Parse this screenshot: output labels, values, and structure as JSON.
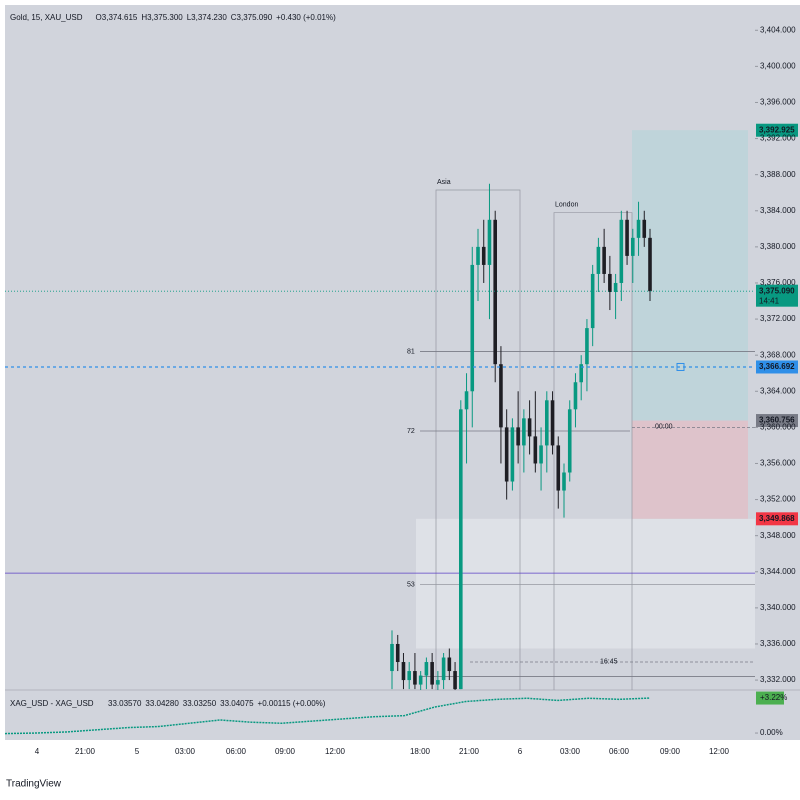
{
  "chart_data": {
    "type": "candlestick",
    "title": "Gold, 15, XAU_USD",
    "ohlc_legend": [
      "O3,374.615",
      "H3,375.300",
      "L3,374.230",
      "C3,375.090",
      "+0.430 (+0.01%)"
    ],
    "ylim": [
      3330.9,
      3406.8
    ],
    "yticks": [
      {
        "value": 3404,
        "label": "3,404.000"
      },
      {
        "value": 3400,
        "label": "3,400.000"
      },
      {
        "value": 3396,
        "label": "3,396.000"
      },
      {
        "value": 3392,
        "label": "3,392.000"
      },
      {
        "value": 3388,
        "label": "3,388.000"
      },
      {
        "value": 3384,
        "label": "3,384.000"
      },
      {
        "value": 3380,
        "label": "3,380.000"
      },
      {
        "value": 3376,
        "label": "3,376.000"
      },
      {
        "value": 3372,
        "label": "3,372.000"
      },
      {
        "value": 3368,
        "label": "3,368.000"
      },
      {
        "value": 3364,
        "label": "3,364.000"
      },
      {
        "value": 3360,
        "label": "3,360.000"
      },
      {
        "value": 3356,
        "label": "3,356.000"
      },
      {
        "value": 3352,
        "label": "3,352.000"
      },
      {
        "value": 3348,
        "label": "3,348.000"
      },
      {
        "value": 3344,
        "label": "3,344.000"
      },
      {
        "value": 3340,
        "label": "3,340.000"
      },
      {
        "value": 3336,
        "label": "3,336.000"
      },
      {
        "value": 3332,
        "label": "3,332.000"
      }
    ],
    "up_color": "#089981",
    "down_color": "#1e1e24",
    "candles": [
      [
        3333,
        3337.5,
        3331,
        3336
      ],
      [
        3336,
        3337,
        3333,
        3334
      ],
      [
        3334,
        3335,
        3331,
        3332
      ],
      [
        3332,
        3334,
        3331,
        3333
      ],
      [
        3333,
        3335,
        3331,
        3331.5
      ],
      [
        3331.5,
        3333,
        3330.5,
        3332.5
      ],
      [
        3332.5,
        3334.5,
        3331,
        3334
      ],
      [
        3334,
        3335,
        3331,
        3331.5
      ],
      [
        3331.5,
        3333,
        3330.5,
        3332
      ],
      [
        3332,
        3335,
        3331,
        3334.5
      ],
      [
        3334.5,
        3335.5,
        3332,
        3333
      ],
      [
        3333,
        3334,
        3330.5,
        3331
      ],
      [
        3331,
        3363,
        3331,
        3362
      ],
      [
        3362,
        3366,
        3356,
        3364
      ],
      [
        3364,
        3380,
        3360,
        3378
      ],
      [
        3378,
        3382,
        3374,
        3380
      ],
      [
        3380,
        3383,
        3376,
        3378
      ],
      [
        3378,
        3387,
        3372,
        3383
      ],
      [
        3383,
        3384,
        3365,
        3367
      ],
      [
        3367,
        3369,
        3356,
        3360
      ],
      [
        3360,
        3362,
        3352,
        3354
      ],
      [
        3354,
        3361,
        3353,
        3360
      ],
      [
        3360,
        3364,
        3356,
        3358
      ],
      [
        3358,
        3362,
        3355,
        3361
      ],
      [
        3361,
        3363,
        3357,
        3359
      ],
      [
        3359,
        3364,
        3355,
        3356
      ],
      [
        3356,
        3360,
        3353,
        3358
      ],
      [
        3358,
        3364,
        3355,
        3363
      ],
      [
        3363,
        3364,
        3357,
        3358
      ],
      [
        3358,
        3359,
        3351,
        3353
      ],
      [
        3353,
        3356,
        3350,
        3355
      ],
      [
        3355,
        3363,
        3354,
        3362
      ],
      [
        3362,
        3366,
        3360,
        3365
      ],
      [
        3365,
        3368,
        3363,
        3367
      ],
      [
        3367,
        3372,
        3364,
        3371
      ],
      [
        3371,
        3378,
        3369,
        3377
      ],
      [
        3377,
        3381,
        3375,
        3380
      ],
      [
        3380,
        3382,
        3376,
        3377
      ],
      [
        3377,
        3379,
        3373,
        3375
      ],
      [
        3375,
        3377,
        3372,
        3376
      ],
      [
        3376,
        3384,
        3374,
        3383
      ],
      [
        3383,
        3384,
        3378,
        3379
      ],
      [
        3379,
        3382,
        3376,
        3381
      ],
      [
        3381,
        3385,
        3379,
        3383
      ],
      [
        3383,
        3384,
        3380,
        3381
      ],
      [
        3381,
        3382,
        3374,
        3375.09
      ]
    ],
    "price_markers": [
      {
        "value": 3392.925,
        "label": "3,392.925",
        "color": "#089981"
      },
      {
        "value": 3375.09,
        "label": "3,375.090",
        "sub": "14:41",
        "color": "#089981"
      },
      {
        "value": 3366.692,
        "label": "3,366.692",
        "color": "#2f8fe8"
      },
      {
        "value": 3360.756,
        "label": "3,360.756",
        "color": "#787b86"
      },
      {
        "value": 3349.868,
        "label": "3,349.868",
        "color": "#f23645"
      }
    ],
    "position": {
      "target": 3392.925,
      "entry": 3360.756,
      "stop": 3349.868
    },
    "zone": {
      "top": 3349.868,
      "bottom": 3335.5
    },
    "levels": [
      {
        "value": 3368.4,
        "label": "81"
      },
      {
        "value": 3359.6,
        "label": "72"
      },
      {
        "value": 3342.6,
        "label": "53"
      },
      {
        "value": 3343.85
      },
      {
        "value": 3332.4
      },
      {
        "value": 3334.0,
        "label": "16:45"
      },
      {
        "value": 3360.0,
        "label": "00:00"
      }
    ],
    "sessions": [
      {
        "label": "Asia",
        "top": 3386.3
      },
      {
        "label": "London",
        "top": 3383.8
      }
    ],
    "compare": {
      "title": "XAG_USD - XAG_USD",
      "ohlc_legend": [
        "33.03570",
        "33.04280",
        "33.03250",
        "33.04075",
        "+0.00115 (+0.00%)"
      ],
      "ylim": [
        -0.64,
        3.96
      ],
      "yticks": [
        {
          "value": 3.22,
          "label": "+3.22%"
        },
        {
          "value": 0,
          "label": "0.00%"
        }
      ],
      "values": [
        -0.05,
        0.0,
        0.1,
        0.3,
        0.5,
        0.6,
        0.9,
        1.2,
        1.0,
        0.9,
        1.1,
        1.3,
        1.5,
        1.6,
        2.4,
        2.9,
        3.1,
        3.2,
        3.0,
        3.2,
        3.1,
        3.22
      ]
    },
    "categories": [
      "4",
      "21:00",
      "5",
      "03:00",
      "06:00",
      "09:00",
      "12:00",
      "18:00",
      "21:00",
      "6",
      "03:00",
      "06:00",
      "09:00",
      "12:00"
    ],
    "brand": "TradingView"
  }
}
